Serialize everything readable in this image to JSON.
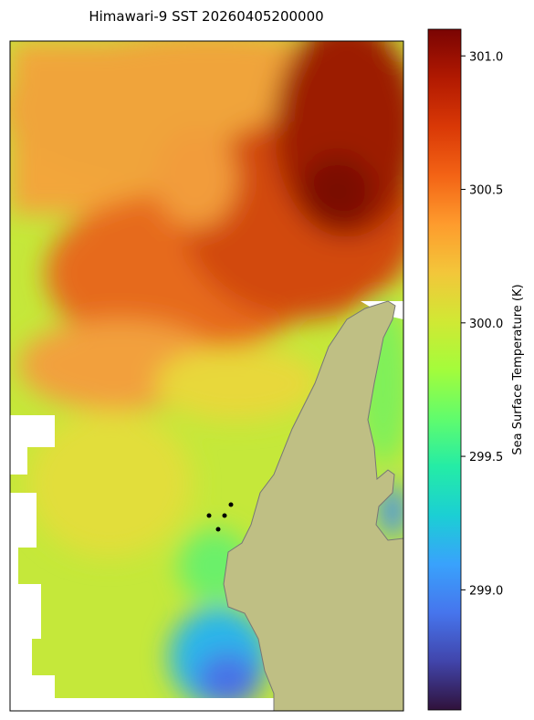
{
  "title": "Himawari-9 SST 20260405200000",
  "colorbar": {
    "label": "Sea Surface Temperature (K)",
    "colormap": "turbo",
    "lim": [
      298.55,
      301.1
    ],
    "ticks": [
      {
        "value": 299,
        "label": "299.0"
      },
      299.5,
      {
        "value": 300,
        "label": "300.0"
      },
      300.5,
      {
        "value": 301,
        "label": "301.0"
      }
    ]
  }
}
